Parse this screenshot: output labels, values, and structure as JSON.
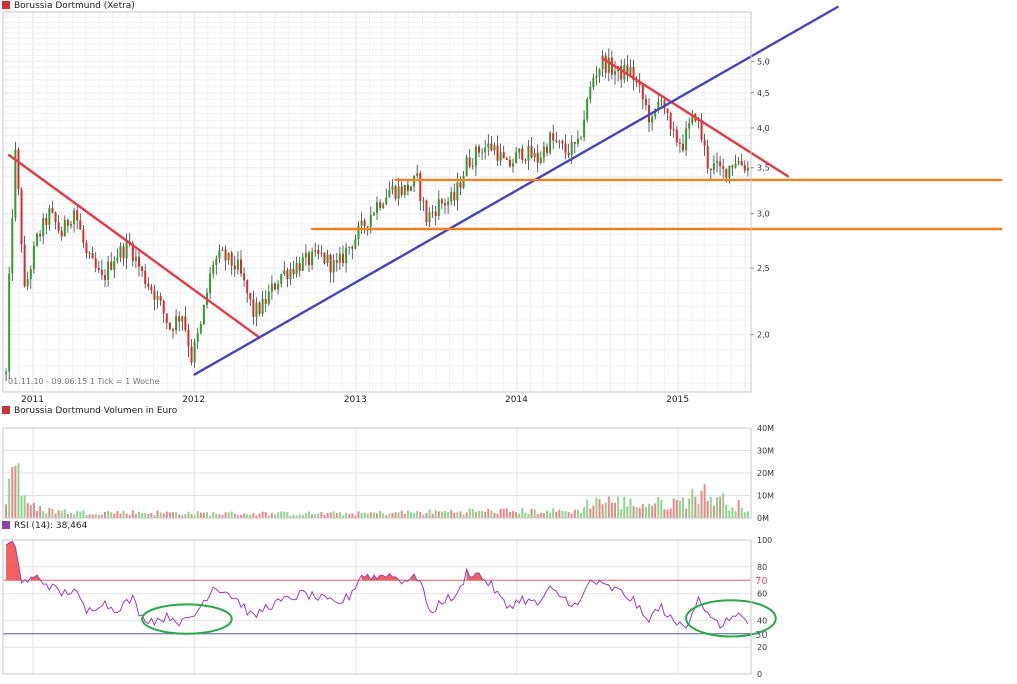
{
  "colors": {
    "up": "#2e9d2e",
    "down": "#d92b2b",
    "vol_up": "#8ed48e",
    "vol_down": "#e88a8a",
    "resistance": "#e63946",
    "support_trend": "#4444bb",
    "horizontal": "#f08020",
    "rsi_line": "#9b3fb5",
    "rsi_fill": "#ee4444",
    "rsi_70": "#e06060",
    "rsi_30": "#5858a0",
    "highlight": "#2aa84a",
    "title_marker": "#cc3333",
    "rsi_marker": "#8844aa"
  },
  "chart_data": [
    {
      "type": "candlestick",
      "title": "Borussia Dortmund (Xetra)",
      "subtitle": "01.11.10 - 09.06.15   1 Tick = 1 Woche",
      "x_ticks": [
        "2011",
        "2012",
        "2013",
        "2014",
        "2015"
      ],
      "y_ticks": [
        "2,0",
        "2,5",
        "3,0",
        "3,5",
        "4,0",
        "4,5",
        "5,0"
      ],
      "y_tick_values": [
        2.0,
        2.5,
        3.0,
        3.5,
        4.0,
        4.5,
        5.0
      ],
      "y_scale": "log",
      "ylim": [
        1.65,
        5.9
      ],
      "xlim": [
        "2010-10-25",
        "2015-06-15"
      ],
      "anchors": [
        [
          "2010-11-01",
          1.75
        ],
        [
          "2010-11-22",
          3.65
        ],
        [
          "2010-12-13",
          2.3
        ],
        [
          "2011-01-10",
          2.75
        ],
        [
          "2011-02-07",
          3.0
        ],
        [
          "2011-03-07",
          2.8
        ],
        [
          "2011-04-04",
          3.05
        ],
        [
          "2011-05-02",
          2.6
        ],
        [
          "2011-06-06",
          2.4
        ],
        [
          "2011-07-04",
          2.6
        ],
        [
          "2011-08-08",
          2.7
        ],
        [
          "2011-09-05",
          2.45
        ],
        [
          "2011-10-03",
          2.3
        ],
        [
          "2011-11-07",
          2.05
        ],
        [
          "2011-12-05",
          2.15
        ],
        [
          "2011-12-26",
          1.85
        ],
        [
          "2012-01-16",
          2.05
        ],
        [
          "2012-02-13",
          2.55
        ],
        [
          "2012-03-05",
          2.6
        ],
        [
          "2012-04-09",
          2.5
        ],
        [
          "2012-05-14",
          2.15
        ],
        [
          "2012-06-04",
          2.2
        ],
        [
          "2012-07-16",
          2.45
        ],
        [
          "2012-09-03",
          2.55
        ],
        [
          "2012-10-15",
          2.6
        ],
        [
          "2012-11-19",
          2.5
        ],
        [
          "2012-12-10",
          2.65
        ],
        [
          "2013-01-14",
          2.85
        ],
        [
          "2013-02-18",
          3.1
        ],
        [
          "2013-03-18",
          3.25
        ],
        [
          "2013-04-22",
          3.25
        ],
        [
          "2013-05-20",
          3.35
        ],
        [
          "2013-06-10",
          2.95
        ],
        [
          "2013-07-08",
          3.1
        ],
        [
          "2013-08-12",
          3.15
        ],
        [
          "2013-09-09",
          3.55
        ],
        [
          "2013-10-14",
          3.75
        ],
        [
          "2013-11-11",
          3.75
        ],
        [
          "2013-12-09",
          3.5
        ],
        [
          "2014-01-13",
          3.7
        ],
        [
          "2014-02-17",
          3.6
        ],
        [
          "2014-03-17",
          3.85
        ],
        [
          "2014-04-21",
          3.7
        ],
        [
          "2014-05-19",
          3.75
        ],
        [
          "2014-06-09",
          4.35
        ],
        [
          "2014-06-23",
          4.75
        ],
        [
          "2014-07-14",
          5.0
        ],
        [
          "2014-08-18",
          4.8
        ],
        [
          "2014-09-15",
          4.85
        ],
        [
          "2014-10-13",
          4.4
        ],
        [
          "2014-11-03",
          4.05
        ],
        [
          "2014-11-24",
          4.5
        ],
        [
          "2014-12-15",
          3.9
        ],
        [
          "2015-01-12",
          3.8
        ],
        [
          "2015-02-09",
          4.2
        ],
        [
          "2015-03-09",
          3.55
        ],
        [
          "2015-04-13",
          3.45
        ],
        [
          "2015-05-11",
          3.6
        ],
        [
          "2015-06-08",
          3.5
        ]
      ],
      "overlays": [
        {
          "name": "",
          "kind": "resistance",
          "from": [
            "2010-11-08",
            3.65
          ],
          "to": [
            "2012-05-28",
            1.98
          ]
        },
        {
          "name": "",
          "kind": "resistance",
          "from": [
            "2014-07-14",
            5.05
          ],
          "to": [
            "2015-09-07",
            3.4
          ]
        },
        {
          "name": "",
          "kind": "support",
          "from": [
            "2012-01-02",
            1.75
          ],
          "to": [
            "2015-12-28",
            6.0
          ]
        },
        {
          "name": "",
          "kind": "horizontal",
          "from": [
            "2013-04-01",
            3.36
          ],
          "to": [
            "2017-01-02",
            3.36
          ]
        },
        {
          "name": "",
          "kind": "horizontal",
          "from": [
            "2012-09-24",
            2.85
          ],
          "to": [
            "2017-01-02",
            2.85
          ]
        }
      ]
    },
    {
      "type": "bar",
      "title": "Borussia Dortmund Volumen in Euro",
      "y_ticks": [
        "0M",
        "10M",
        "20M",
        "30M",
        "40M"
      ],
      "y_tick_values": [
        0,
        10,
        20,
        30,
        40
      ],
      "ylim": [
        0,
        40
      ],
      "anchors": [
        [
          "2010-11-01",
          9
        ],
        [
          "2010-11-22",
          30
        ],
        [
          "2010-12-13",
          7
        ],
        [
          "2011-01-10",
          4
        ],
        [
          "2011-04-04",
          2.5
        ],
        [
          "2011-08-08",
          2.5
        ],
        [
          "2012-02-13",
          2
        ],
        [
          "2013-01-14",
          2
        ],
        [
          "2013-09-09",
          3
        ],
        [
          "2014-05-19",
          3
        ],
        [
          "2014-06-23",
          8
        ],
        [
          "2014-10-13",
          6
        ],
        [
          "2015-01-12",
          7
        ],
        [
          "2015-02-09",
          12
        ],
        [
          "2015-06-08",
          4
        ]
      ]
    },
    {
      "type": "line",
      "title": "RSI (14): 38,464",
      "y_ticks": [
        "0",
        "20",
        "40",
        "60",
        "80",
        "100"
      ],
      "y_tick_values": [
        0,
        20,
        40,
        60,
        80,
        100
      ],
      "ylim": [
        0,
        100
      ],
      "levels": [
        {
          "value": 70,
          "label": "70"
        },
        {
          "value": 30,
          "label": "30"
        }
      ],
      "anchors": [
        [
          "2010-11-01",
          95
        ],
        [
          "2010-11-22",
          97
        ],
        [
          "2010-12-06",
          68
        ],
        [
          "2011-01-10",
          72
        ],
        [
          "2011-02-07",
          66
        ],
        [
          "2011-03-07",
          60
        ],
        [
          "2011-04-04",
          63
        ],
        [
          "2011-05-02",
          46
        ],
        [
          "2011-06-06",
          54
        ],
        [
          "2011-07-04",
          48
        ],
        [
          "2011-08-15",
          56
        ],
        [
          "2011-09-05",
          42
        ],
        [
          "2011-10-03",
          40
        ],
        [
          "2011-11-07",
          43
        ],
        [
          "2011-12-05",
          38
        ],
        [
          "2012-01-02",
          44
        ],
        [
          "2012-02-13",
          65
        ],
        [
          "2012-03-12",
          62
        ],
        [
          "2012-04-09",
          55
        ],
        [
          "2012-05-14",
          42
        ],
        [
          "2012-06-11",
          50
        ],
        [
          "2012-07-16",
          54
        ],
        [
          "2012-09-03",
          60
        ],
        [
          "2012-10-15",
          56
        ],
        [
          "2012-11-19",
          52
        ],
        [
          "2012-12-17",
          58
        ],
        [
          "2013-01-14",
          74
        ],
        [
          "2013-02-18",
          72
        ],
        [
          "2013-03-11",
          75
        ],
        [
          "2013-04-15",
          70
        ],
        [
          "2013-05-27",
          72
        ],
        [
          "2013-06-17",
          44
        ],
        [
          "2013-07-15",
          55
        ],
        [
          "2013-08-19",
          58
        ],
        [
          "2013-09-09",
          76
        ],
        [
          "2013-10-07",
          74
        ],
        [
          "2013-11-04",
          66
        ],
        [
          "2013-12-09",
          50
        ],
        [
          "2014-01-13",
          56
        ],
        [
          "2014-02-17",
          52
        ],
        [
          "2014-03-17",
          63
        ],
        [
          "2014-04-21",
          56
        ],
        [
          "2014-05-19",
          50
        ],
        [
          "2014-06-16",
          70
        ],
        [
          "2014-07-14",
          66
        ],
        [
          "2014-08-18",
          62
        ],
        [
          "2014-09-22",
          55
        ],
        [
          "2014-10-20",
          40
        ],
        [
          "2014-11-24",
          50
        ],
        [
          "2014-12-22",
          38
        ],
        [
          "2015-01-19",
          36
        ],
        [
          "2015-02-16",
          58
        ],
        [
          "2015-03-16",
          40
        ],
        [
          "2015-04-13",
          36
        ],
        [
          "2015-05-11",
          46
        ],
        [
          "2015-06-08",
          38.5
        ]
      ],
      "annotations": [
        {
          "kind": "ellipse",
          "from": "2011-09-05",
          "to": "2012-03-26",
          "y_range": [
            30,
            52
          ]
        },
        {
          "kind": "ellipse",
          "from": "2015-01-19",
          "to": "2015-08-10",
          "y_range": [
            28,
            55
          ]
        }
      ]
    }
  ]
}
